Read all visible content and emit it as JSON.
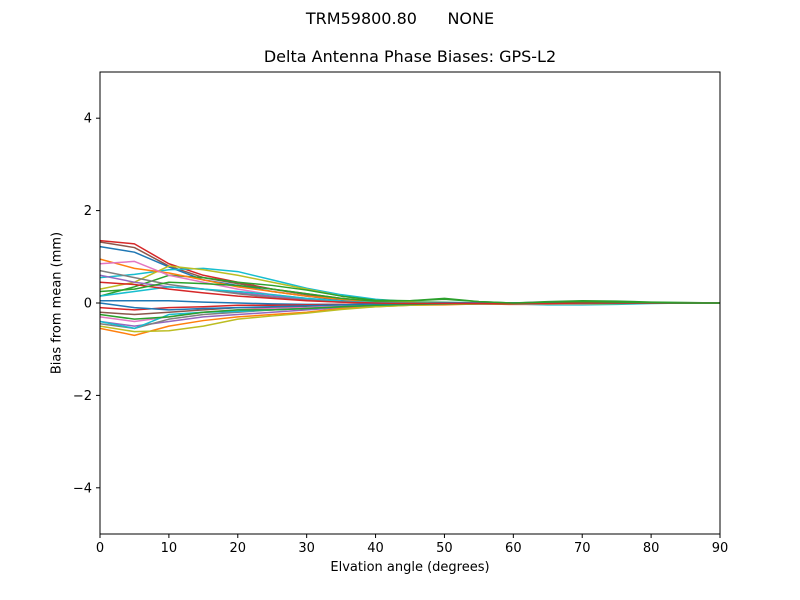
{
  "header": {
    "suptitle": "TRM59800.80      NONE"
  },
  "chart_data": {
    "type": "line",
    "title": "Delta Antenna Phase Biases: GPS-L2",
    "xlabel": "Elvation angle (degrees)",
    "ylabel": "Bias from mean (mm)",
    "xlim": [
      0,
      90
    ],
    "ylim": [
      -5,
      5
    ],
    "xticks": [
      0,
      10,
      20,
      30,
      40,
      50,
      60,
      70,
      80,
      90
    ],
    "yticks": [
      -4,
      -2,
      0,
      2,
      4
    ],
    "ytick_labels": [
      "−4",
      "−2",
      "0",
      "2",
      "4"
    ],
    "grid": false,
    "x": [
      0,
      5,
      10,
      15,
      20,
      25,
      30,
      35,
      40,
      45,
      50,
      55,
      60,
      65,
      70,
      75,
      80,
      85,
      90
    ],
    "series": [
      {
        "color": "#d62728",
        "values": [
          1.35,
          1.28,
          0.85,
          0.6,
          0.45,
          0.3,
          0.2,
          0.1,
          0.03,
          0.0,
          -0.02,
          -0.02,
          -0.03,
          -0.03,
          -0.02,
          -0.01,
          0.0,
          0.0,
          0.0
        ]
      },
      {
        "color": "#8c564b",
        "values": [
          1.32,
          1.2,
          0.8,
          0.55,
          0.42,
          0.3,
          0.18,
          0.08,
          0.02,
          -0.01,
          -0.02,
          -0.02,
          -0.02,
          -0.02,
          -0.01,
          0.0,
          0.0,
          0.0,
          0.0
        ]
      },
      {
        "color": "#1f77b4",
        "values": [
          1.22,
          1.1,
          0.78,
          0.5,
          0.38,
          0.25,
          0.15,
          0.06,
          0.0,
          -0.02,
          -0.03,
          -0.02,
          -0.02,
          -0.02,
          -0.01,
          0.0,
          0.0,
          0.0,
          0.0
        ]
      },
      {
        "color": "#17becf",
        "values": [
          0.55,
          0.62,
          0.72,
          0.75,
          0.68,
          0.5,
          0.32,
          0.18,
          0.08,
          0.03,
          0.02,
          0.0,
          -0.02,
          -0.04,
          -0.04,
          -0.03,
          -0.01,
          0.0,
          0.0
        ]
      },
      {
        "color": "#bcbd22",
        "values": [
          0.3,
          0.45,
          0.8,
          0.72,
          0.6,
          0.45,
          0.3,
          0.15,
          0.05,
          0.02,
          0.01,
          0.0,
          -0.01,
          -0.02,
          -0.02,
          -0.01,
          0.0,
          0.0,
          0.0
        ]
      },
      {
        "color": "#2ca02c",
        "values": [
          0.15,
          0.35,
          0.6,
          0.55,
          0.45,
          0.38,
          0.28,
          0.15,
          0.06,
          0.05,
          0.1,
          0.03,
          0.0,
          0.03,
          0.05,
          0.04,
          0.02,
          0.01,
          0.0
        ]
      },
      {
        "color": "#ff7f0e",
        "values": [
          0.95,
          0.75,
          0.65,
          0.5,
          0.35,
          0.25,
          0.15,
          0.08,
          0.02,
          0.0,
          -0.02,
          -0.02,
          -0.02,
          -0.02,
          -0.01,
          0.0,
          0.0,
          0.0,
          0.0
        ]
      },
      {
        "color": "#e377c2",
        "values": [
          0.85,
          0.9,
          0.6,
          0.45,
          0.3,
          0.18,
          0.1,
          0.04,
          0.0,
          -0.02,
          -0.02,
          -0.02,
          -0.01,
          -0.01,
          -0.01,
          0.0,
          0.0,
          0.0,
          0.0
        ]
      },
      {
        "color": "#9467bd",
        "values": [
          0.6,
          0.45,
          0.35,
          0.3,
          0.22,
          0.15,
          0.08,
          0.03,
          0.0,
          -0.01,
          -0.01,
          -0.01,
          0.0,
          0.02,
          0.02,
          0.01,
          0.0,
          0.0,
          0.0
        ]
      },
      {
        "color": "#7f7f7f",
        "values": [
          0.7,
          0.55,
          0.4,
          0.3,
          0.2,
          0.12,
          0.06,
          0.02,
          0.0,
          -0.01,
          -0.01,
          -0.01,
          -0.01,
          0.0,
          0.0,
          0.0,
          0.0,
          0.0,
          0.0
        ]
      },
      {
        "color": "#17becf",
        "values": [
          0.15,
          0.25,
          0.35,
          0.3,
          0.25,
          0.18,
          0.1,
          0.04,
          0.01,
          0.0,
          0.0,
          0.0,
          0.0,
          0.01,
          0.01,
          0.0,
          0.0,
          0.0,
          0.0
        ]
      },
      {
        "color": "#1f77b4",
        "values": [
          0.05,
          0.05,
          0.05,
          0.02,
          0.0,
          -0.02,
          -0.03,
          -0.03,
          -0.02,
          -0.01,
          0.0,
          0.0,
          0.0,
          0.0,
          0.0,
          0.0,
          0.0,
          0.0,
          0.0
        ]
      },
      {
        "color": "#d62728",
        "values": [
          -0.1,
          -0.15,
          -0.1,
          -0.08,
          -0.05,
          -0.05,
          -0.04,
          -0.03,
          -0.02,
          -0.01,
          0.0,
          0.0,
          0.0,
          0.01,
          0.01,
          0.0,
          0.0,
          0.0,
          0.0
        ]
      },
      {
        "color": "#8c564b",
        "values": [
          -0.2,
          -0.25,
          -0.2,
          -0.15,
          -0.1,
          -0.1,
          -0.08,
          -0.05,
          -0.03,
          -0.02,
          -0.01,
          0.0,
          0.0,
          0.0,
          0.0,
          0.0,
          0.0,
          0.0,
          0.0
        ]
      },
      {
        "color": "#e377c2",
        "values": [
          -0.3,
          -0.4,
          -0.3,
          -0.2,
          -0.15,
          -0.12,
          -0.1,
          -0.06,
          -0.04,
          -0.02,
          -0.01,
          0.0,
          0.0,
          0.0,
          0.0,
          0.0,
          0.0,
          0.0,
          0.0
        ]
      },
      {
        "color": "#9467bd",
        "values": [
          -0.4,
          -0.5,
          -0.4,
          -0.3,
          -0.25,
          -0.2,
          -0.15,
          -0.1,
          -0.06,
          -0.04,
          -0.03,
          -0.01,
          0.0,
          0.0,
          0.0,
          0.0,
          0.0,
          0.0,
          0.0
        ]
      },
      {
        "color": "#7f7f7f",
        "values": [
          -0.45,
          -0.55,
          -0.35,
          -0.25,
          -0.2,
          -0.15,
          -0.12,
          -0.08,
          -0.05,
          -0.03,
          -0.02,
          -0.01,
          0.0,
          0.0,
          0.0,
          0.0,
          0.0,
          0.0,
          0.0
        ]
      },
      {
        "color": "#ff7f0e",
        "values": [
          -0.55,
          -0.7,
          -0.5,
          -0.38,
          -0.3,
          -0.25,
          -0.2,
          -0.12,
          -0.08,
          -0.05,
          -0.04,
          -0.02,
          -0.01,
          0.0,
          0.0,
          0.0,
          0.0,
          0.0,
          0.0
        ]
      },
      {
        "color": "#bcbd22",
        "values": [
          -0.5,
          -0.62,
          -0.6,
          -0.5,
          -0.35,
          -0.28,
          -0.22,
          -0.14,
          -0.08,
          -0.05,
          -0.03,
          -0.02,
          -0.01,
          0.0,
          0.0,
          0.0,
          0.0,
          0.0,
          0.0
        ]
      },
      {
        "color": "#17becf",
        "values": [
          -0.4,
          -0.55,
          -0.25,
          -0.2,
          -0.18,
          -0.15,
          -0.12,
          -0.08,
          -0.05,
          -0.03,
          -0.02,
          -0.01,
          0.0,
          0.0,
          0.0,
          0.0,
          0.0,
          0.0,
          0.0
        ]
      },
      {
        "color": "#2ca02c",
        "values": [
          -0.25,
          -0.35,
          -0.3,
          -0.2,
          -0.15,
          -0.15,
          -0.12,
          -0.08,
          -0.05,
          -0.03,
          -0.02,
          -0.01,
          0.0,
          0.0,
          0.0,
          0.0,
          0.0,
          0.0,
          0.0
        ]
      },
      {
        "color": "#1f77b4",
        "values": [
          0.0,
          -0.1,
          -0.15,
          -0.12,
          -0.1,
          -0.08,
          -0.06,
          -0.04,
          -0.02,
          -0.01,
          0.0,
          0.0,
          0.0,
          0.0,
          0.0,
          0.0,
          0.0,
          0.0,
          0.0
        ]
      },
      {
        "color": "#d62728",
        "values": [
          0.45,
          0.4,
          0.3,
          0.22,
          0.15,
          0.1,
          0.05,
          0.02,
          0.0,
          -0.01,
          -0.01,
          -0.01,
          -0.01,
          -0.01,
          0.0,
          0.0,
          0.0,
          0.0,
          0.0
        ]
      },
      {
        "color": "#2ca02c",
        "values": [
          0.25,
          0.3,
          0.45,
          0.42,
          0.38,
          0.3,
          0.2,
          0.1,
          0.04,
          0.05,
          0.08,
          0.03,
          0.0,
          0.02,
          0.03,
          0.02,
          0.01,
          0.0,
          0.0
        ]
      }
    ]
  }
}
